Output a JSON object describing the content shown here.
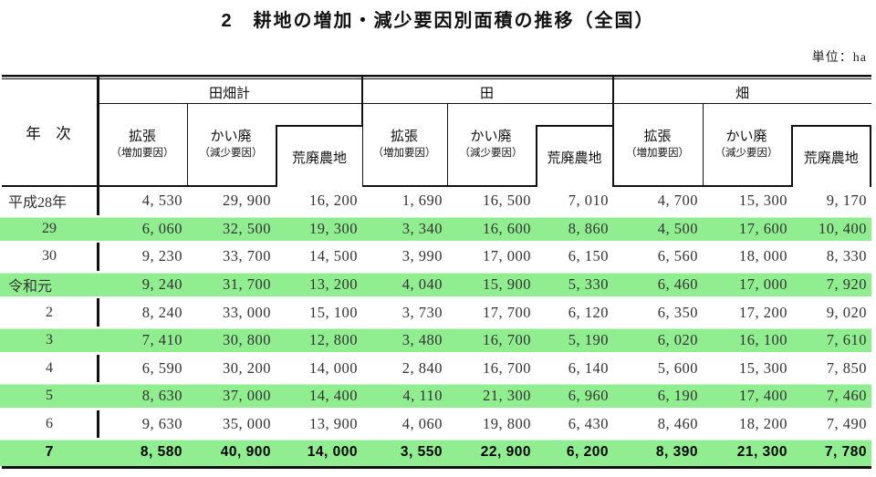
{
  "title": "2　耕地の増加・減少要因別面積の推移（全国）",
  "unit_label": "単位：ha",
  "colors": {
    "highlight_green": "#90EE90",
    "rule_black": "#111111"
  },
  "table": {
    "year_header": "年　次",
    "groups": [
      {
        "label": "田畑計"
      },
      {
        "label": "田"
      },
      {
        "label": "畑"
      }
    ],
    "sub_headers": {
      "expansion": "拡張",
      "expansion_note": "（増加要因）",
      "abolition": "かい廃",
      "abolition_note": "（減少要因）",
      "devastated": "荒廃農地"
    },
    "rows": [
      {
        "year": "平成28年",
        "era": true,
        "highlight": false,
        "bold": false,
        "values": [
          "4, 530",
          "29, 900",
          "16, 200",
          "1, 690",
          "16, 500",
          "7, 010",
          "4, 700",
          "15, 300",
          "9, 170"
        ]
      },
      {
        "year": "29",
        "era": false,
        "highlight": true,
        "bold": false,
        "values": [
          "6, 060",
          "32, 500",
          "19, 300",
          "3, 340",
          "16, 600",
          "8, 860",
          "4, 500",
          "17, 600",
          "10, 400"
        ]
      },
      {
        "year": "30",
        "era": false,
        "highlight": false,
        "bold": false,
        "values": [
          "9, 230",
          "33, 700",
          "14, 500",
          "3, 990",
          "17, 000",
          "6, 150",
          "6, 560",
          "18, 000",
          "8, 330"
        ]
      },
      {
        "year": "令和元",
        "era": true,
        "highlight": true,
        "bold": false,
        "values": [
          "9, 240",
          "31, 700",
          "13, 200",
          "4, 040",
          "15, 900",
          "5, 330",
          "6, 460",
          "17, 000",
          "7, 920"
        ]
      },
      {
        "year": "2",
        "era": false,
        "highlight": false,
        "bold": false,
        "values": [
          "8, 240",
          "33, 000",
          "15, 100",
          "3, 730",
          "17, 700",
          "6, 120",
          "6, 350",
          "17, 200",
          "9, 020"
        ]
      },
      {
        "year": "3",
        "era": false,
        "highlight": true,
        "bold": false,
        "values": [
          "7, 410",
          "30, 800",
          "12, 800",
          "3, 480",
          "16, 700",
          "5, 190",
          "6, 020",
          "16, 100",
          "7, 610"
        ]
      },
      {
        "year": "4",
        "era": false,
        "highlight": false,
        "bold": false,
        "values": [
          "6, 590",
          "30, 200",
          "14, 000",
          "2, 840",
          "16, 700",
          "6, 140",
          "5, 600",
          "15, 300",
          "7, 850"
        ]
      },
      {
        "year": "5",
        "era": false,
        "highlight": true,
        "bold": false,
        "values": [
          "8, 630",
          "37, 000",
          "14, 400",
          "4, 110",
          "21, 300",
          "6, 960",
          "6, 190",
          "17, 400",
          "7, 460"
        ]
      },
      {
        "year": "6",
        "era": false,
        "highlight": false,
        "bold": false,
        "values": [
          "9, 630",
          "35, 000",
          "13, 900",
          "4, 060",
          "19, 800",
          "6, 430",
          "8, 460",
          "18, 200",
          "7, 490"
        ]
      },
      {
        "year": "7",
        "era": false,
        "highlight": true,
        "bold": true,
        "values": [
          "8, 580",
          "40, 900",
          "14, 000",
          "3, 550",
          "22, 900",
          "6, 200",
          "8, 390",
          "21, 300",
          "7, 780"
        ]
      }
    ]
  }
}
